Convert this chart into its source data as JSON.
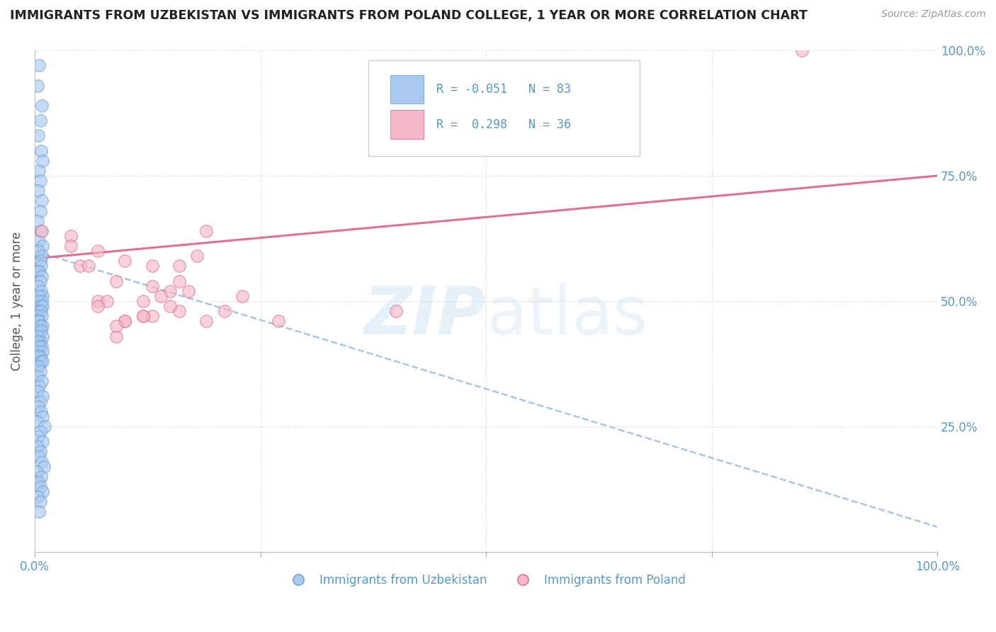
{
  "title": "IMMIGRANTS FROM UZBEKISTAN VS IMMIGRANTS FROM POLAND COLLEGE, 1 YEAR OR MORE CORRELATION CHART",
  "source": "Source: ZipAtlas.com",
  "ylabel": "College, 1 year or more",
  "legend_label1": "Immigrants from Uzbekistan",
  "legend_label2": "Immigrants from Poland",
  "R1": -0.051,
  "N1": 83,
  "R2": 0.298,
  "N2": 36,
  "color_blue": "#A8C8F0",
  "color_blue_edge": "#6699CC",
  "color_pink": "#F5B8C8",
  "color_pink_edge": "#E06080",
  "color_trend_blue": "#99BBDD",
  "color_trend_pink": "#E06080",
  "axis_tick_color": "#5599CC",
  "grid_color": "#CCCCCC",
  "title_color": "#222222",
  "xlim": [
    0.0,
    1.0
  ],
  "ylim": [
    0.0,
    1.0
  ],
  "xticks": [
    0.0,
    0.25,
    0.5,
    0.75,
    1.0
  ],
  "yticks": [
    0.0,
    0.25,
    0.5,
    0.75,
    1.0
  ],
  "xtick_labels": [
    "0.0%",
    "",
    "",
    "",
    "100.0%"
  ],
  "ytick_labels_right": [
    "",
    "25.0%",
    "50.0%",
    "75.0%",
    "100.0%"
  ],
  "blue_trend_x0": 0.0,
  "blue_trend_y0": 0.6,
  "blue_trend_x1": 1.0,
  "blue_trend_y1": 0.05,
  "pink_trend_x0": 0.0,
  "pink_trend_y0": 0.585,
  "pink_trend_x1": 1.0,
  "pink_trend_y1": 0.75,
  "uzbek_x": [
    0.005,
    0.003,
    0.008,
    0.006,
    0.004,
    0.007,
    0.009,
    0.005,
    0.006,
    0.004,
    0.008,
    0.006,
    0.003,
    0.007,
    0.005,
    0.009,
    0.004,
    0.008,
    0.006,
    0.007,
    0.003,
    0.005,
    0.008,
    0.006,
    0.004,
    0.007,
    0.009,
    0.005,
    0.008,
    0.004,
    0.006,
    0.009,
    0.004,
    0.007,
    0.003,
    0.008,
    0.005,
    0.004,
    0.009,
    0.006,
    0.003,
    0.007,
    0.009,
    0.004,
    0.006,
    0.003,
    0.008,
    0.005,
    0.003,
    0.009,
    0.006,
    0.004,
    0.007,
    0.009,
    0.004,
    0.006,
    0.003,
    0.008,
    0.005,
    0.003,
    0.009,
    0.006,
    0.004,
    0.007,
    0.009,
    0.002,
    0.011,
    0.006,
    0.004,
    0.009,
    0.003,
    0.006,
    0.005,
    0.008,
    0.01,
    0.002,
    0.007,
    0.004,
    0.006,
    0.009,
    0.003,
    0.006,
    0.005
  ],
  "uzbek_y": [
    0.97,
    0.93,
    0.89,
    0.86,
    0.83,
    0.8,
    0.78,
    0.76,
    0.74,
    0.72,
    0.7,
    0.68,
    0.66,
    0.64,
    0.62,
    0.61,
    0.6,
    0.59,
    0.58,
    0.57,
    0.56,
    0.56,
    0.55,
    0.54,
    0.53,
    0.52,
    0.51,
    0.51,
    0.5,
    0.5,
    0.49,
    0.49,
    0.48,
    0.48,
    0.47,
    0.47,
    0.46,
    0.46,
    0.45,
    0.45,
    0.44,
    0.44,
    0.43,
    0.43,
    0.42,
    0.42,
    0.41,
    0.41,
    0.4,
    0.4,
    0.39,
    0.39,
    0.38,
    0.38,
    0.37,
    0.36,
    0.35,
    0.34,
    0.33,
    0.32,
    0.31,
    0.3,
    0.29,
    0.28,
    0.27,
    0.26,
    0.25,
    0.24,
    0.23,
    0.22,
    0.21,
    0.2,
    0.19,
    0.18,
    0.17,
    0.16,
    0.15,
    0.14,
    0.13,
    0.12,
    0.11,
    0.1,
    0.08
  ],
  "poland_x": [
    0.008,
    0.04,
    0.07,
    0.1,
    0.13,
    0.16,
    0.19,
    0.07,
    0.09,
    0.12,
    0.15,
    0.05,
    0.08,
    0.1,
    0.13,
    0.16,
    0.06,
    0.09,
    0.12,
    0.14,
    0.04,
    0.07,
    0.1,
    0.13,
    0.16,
    0.18,
    0.09,
    0.12,
    0.15,
    0.17,
    0.19,
    0.21,
    0.23,
    0.27,
    0.4,
    0.85
  ],
  "poland_y": [
    0.64,
    0.63,
    0.6,
    0.58,
    0.57,
    0.54,
    0.64,
    0.5,
    0.54,
    0.5,
    0.52,
    0.57,
    0.5,
    0.46,
    0.53,
    0.48,
    0.57,
    0.43,
    0.47,
    0.51,
    0.61,
    0.49,
    0.46,
    0.47,
    0.57,
    0.59,
    0.45,
    0.47,
    0.49,
    0.52,
    0.46,
    0.48,
    0.51,
    0.46,
    0.48,
    1.0
  ]
}
